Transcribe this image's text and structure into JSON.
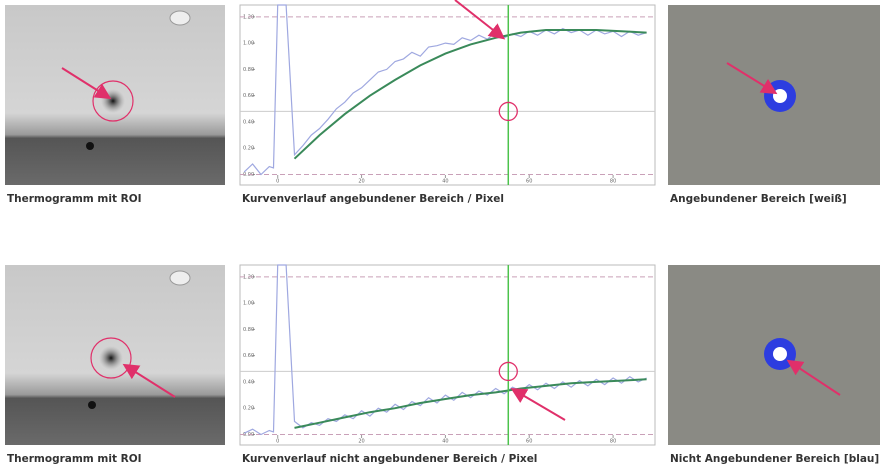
{
  "image_captions": [
    "Thermogramm mit ROI",
    "Angebundener Bereich [weiß]",
    "Thermogramm mit ROI",
    "Nicht Angebundener Bereich [blau]"
  ],
  "chart_data": [
    {
      "type": "line",
      "title": "Kurvenverlauf angebundener Bereich / Pixel",
      "xlim": [
        -9,
        90
      ],
      "ylim": [
        -0.08,
        1.29
      ],
      "xticks": [
        0,
        20,
        40,
        60,
        80
      ],
      "yticks": [
        {
          "value": 0,
          "label": "0.00"
        },
        {
          "value": 0.2,
          "label": "0.20"
        },
        {
          "value": 0.4,
          "label": "0.40"
        },
        {
          "value": 0.6,
          "label": "0.60"
        },
        {
          "value": 0.8,
          "label": "0.80"
        },
        {
          "value": 1.0,
          "label": "1.00"
        },
        {
          "value": 1.2,
          "label": "1.20"
        }
      ],
      "vertical_line": 55,
      "horizontal_line": 0.48,
      "dashed_lines": [
        1.2,
        0.0
      ],
      "grid": false,
      "series": [
        {
          "color": "#9fa8e0",
          "x": [
            -8,
            -6,
            -4,
            -2,
            -1,
            0,
            2,
            4,
            6,
            8,
            10,
            12,
            14,
            16,
            18,
            20,
            22,
            24,
            26,
            28,
            30,
            32,
            34,
            36,
            38,
            40,
            42,
            44,
            46,
            48,
            50,
            52,
            54,
            56,
            58,
            60,
            62,
            64,
            66,
            68,
            70,
            72,
            74,
            76,
            78,
            80,
            82,
            84,
            86,
            88
          ],
          "values": [
            0.02,
            0.08,
            0.0,
            0.06,
            0.05,
            1.29,
            1.29,
            0.15,
            0.22,
            0.3,
            0.35,
            0.42,
            0.5,
            0.55,
            0.62,
            0.66,
            0.72,
            0.78,
            0.8,
            0.86,
            0.88,
            0.93,
            0.9,
            0.97,
            0.98,
            1.0,
            0.99,
            1.04,
            1.02,
            1.06,
            1.03,
            1.08,
            1.04,
            1.07,
            1.05,
            1.09,
            1.06,
            1.1,
            1.07,
            1.11,
            1.08,
            1.1,
            1.06,
            1.1,
            1.07,
            1.09,
            1.05,
            1.09,
            1.06,
            1.08
          ]
        },
        {
          "color": "#3a8a5a",
          "x": [
            4,
            10,
            16,
            22,
            28,
            34,
            40,
            46,
            52,
            58,
            64,
            70,
            76,
            82,
            88
          ],
          "values": [
            0.12,
            0.3,
            0.46,
            0.6,
            0.72,
            0.83,
            0.92,
            0.99,
            1.04,
            1.08,
            1.1,
            1.1,
            1.1,
            1.09,
            1.08
          ]
        }
      ]
    },
    {
      "type": "line",
      "title": "Kurvenverlauf nicht angebundener Bereich / Pixel",
      "xlim": [
        -9,
        90
      ],
      "ylim": [
        -0.08,
        1.29
      ],
      "xticks": [
        0,
        20,
        40,
        60,
        80
      ],
      "yticks": [
        {
          "value": 0,
          "label": "0.00"
        },
        {
          "value": 0.2,
          "label": "0.20"
        },
        {
          "value": 0.4,
          "label": "0.40"
        },
        {
          "value": 0.6,
          "label": "0.60"
        },
        {
          "value": 0.8,
          "label": "0.80"
        },
        {
          "value": 1.0,
          "label": "1.00"
        },
        {
          "value": 1.2,
          "label": "1.20"
        }
      ],
      "vertical_line": 55,
      "horizontal_line": 0.48,
      "dashed_lines": [
        1.2,
        0.0
      ],
      "grid": false,
      "series": [
        {
          "color": "#9fa8e0",
          "x": [
            -8,
            -6,
            -4,
            -2,
            -1,
            0,
            2,
            4,
            6,
            8,
            10,
            12,
            14,
            16,
            18,
            20,
            22,
            24,
            26,
            28,
            30,
            32,
            34,
            36,
            38,
            40,
            42,
            44,
            46,
            48,
            50,
            52,
            54,
            56,
            58,
            60,
            62,
            64,
            66,
            68,
            70,
            72,
            74,
            76,
            78,
            80,
            82,
            84,
            86,
            88
          ],
          "values": [
            0.01,
            0.04,
            0.0,
            0.03,
            0.02,
            1.29,
            1.29,
            0.1,
            0.05,
            0.09,
            0.07,
            0.12,
            0.1,
            0.15,
            0.12,
            0.18,
            0.14,
            0.2,
            0.17,
            0.23,
            0.19,
            0.25,
            0.22,
            0.28,
            0.24,
            0.3,
            0.26,
            0.32,
            0.28,
            0.33,
            0.3,
            0.35,
            0.31,
            0.36,
            0.33,
            0.38,
            0.34,
            0.39,
            0.35,
            0.4,
            0.36,
            0.41,
            0.37,
            0.42,
            0.38,
            0.43,
            0.39,
            0.44,
            0.4,
            0.43
          ]
        },
        {
          "color": "#3a8a5a",
          "x": [
            4,
            10,
            16,
            22,
            28,
            34,
            40,
            46,
            52,
            58,
            64,
            70,
            76,
            82,
            88
          ],
          "values": [
            0.05,
            0.09,
            0.13,
            0.17,
            0.2,
            0.24,
            0.27,
            0.3,
            0.32,
            0.35,
            0.37,
            0.39,
            0.4,
            0.41,
            0.42
          ]
        }
      ]
    }
  ]
}
